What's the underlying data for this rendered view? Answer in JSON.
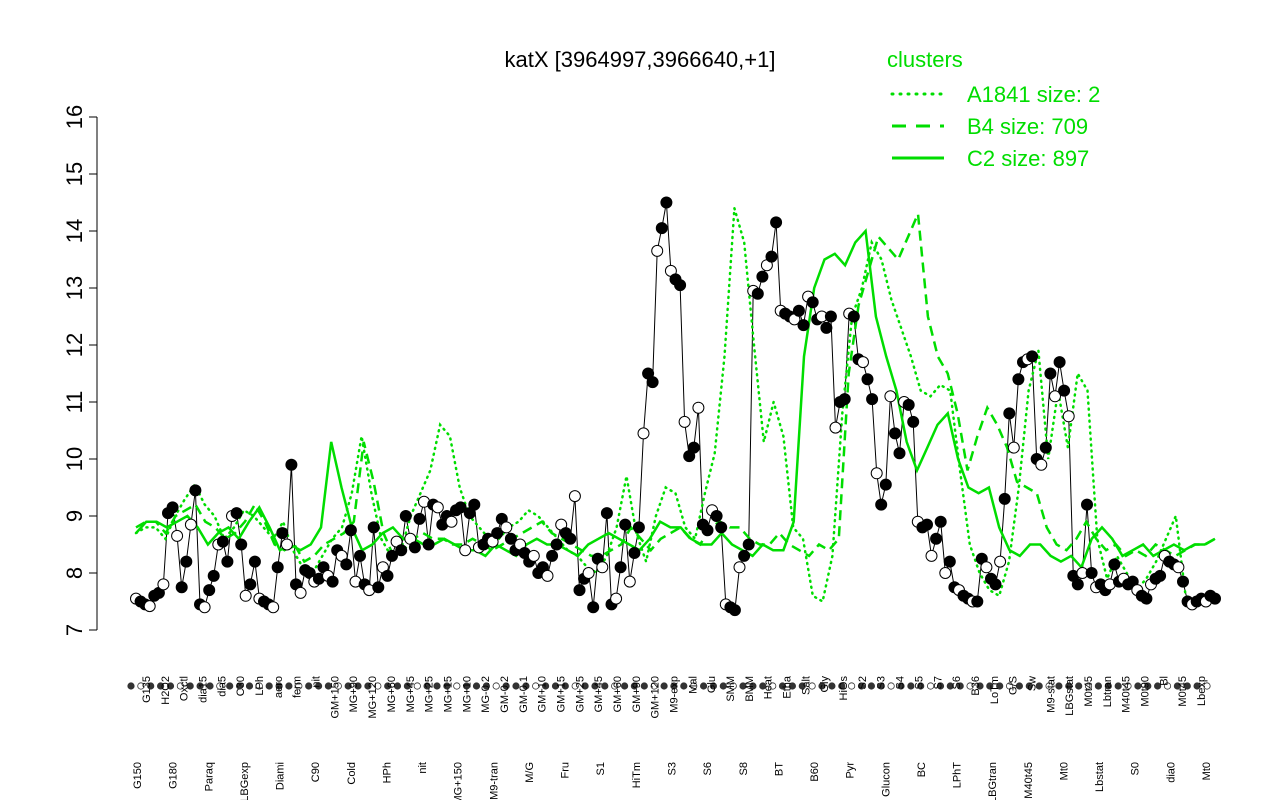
{
  "chart_data": {
    "type": "line",
    "title": "katX [3964997,3966640,+1]",
    "ylim": [
      7,
      16
    ],
    "yticks": [
      7,
      8,
      9,
      10,
      11,
      12,
      13,
      14,
      15,
      16
    ],
    "xlabel": "",
    "ylabel": "",
    "legend": {
      "title": "clusters",
      "placement": "top-right",
      "entries": [
        {
          "label": "A1841 size: 2",
          "style": "dotted",
          "color": "#00dd00"
        },
        {
          "label": "B4 size: 709",
          "style": "dashed",
          "color": "#00dd00"
        },
        {
          "label": "C2 size: 897",
          "style": "solid",
          "color": "#00dd00"
        }
      ]
    },
    "x_labels_row1": [
      "G135",
      "H2O2",
      "Oxctl",
      "dia15",
      "dia5",
      "C30",
      "LPh",
      "aero",
      "ferm",
      "nit",
      "GM+150",
      "MG+90",
      "MG+120",
      "MG+60",
      "MG+45",
      "MG+25",
      "MG+15",
      "MG+10",
      "MG-0.2",
      "GM-0.2",
      "GM-0.1",
      "GM+10",
      "GM+15",
      "GM+25",
      "GM+45",
      "GM+60",
      "GM+90",
      "GM+120",
      "M9-exp",
      "Mal",
      "Glu",
      "SMM",
      "BMM",
      "Heat",
      "Etha",
      "Salt",
      "Gly",
      "HiOs",
      "S2",
      "S3",
      "S4",
      "S5",
      "S7",
      "S6",
      "B36",
      "LoTm",
      "G/S",
      "Sw",
      "M9-stat",
      "LBGstat",
      "M0t45",
      "Lbtran",
      "M40t45",
      "M0t90",
      "Bl",
      "M0t45",
      "Lbexp"
    ],
    "x_labels_row2": [
      "G150",
      "G180",
      "Paraq",
      "LBGexp",
      "Diami",
      "C90",
      "Cold",
      "HPh",
      "nit",
      "MG+150",
      "M9-tran",
      "M/G",
      "Fru",
      "S1",
      "HiTm",
      "S3",
      "S6",
      "S8",
      "BT",
      "B60",
      "Pyr",
      "Glucon",
      "BC",
      "LPhT",
      "LBGtran",
      "M40t45",
      "Mt0",
      "Lbstat",
      "S0",
      "dia0",
      "Mt0"
    ],
    "series": [
      {
        "style": "solid-black-points",
        "values": [
          7.55,
          7.5,
          7.45,
          7.42,
          7.6,
          7.65,
          7.8,
          9.05,
          9.15,
          8.65,
          7.75,
          8.2,
          8.85,
          9.45,
          7.45,
          7.4,
          7.7,
          7.95,
          8.5,
          8.55,
          8.2,
          9.0,
          9.05,
          8.5,
          7.6,
          7.8,
          8.2,
          7.55,
          7.5,
          7.45,
          7.4,
          8.1,
          8.7,
          8.5,
          9.9,
          7.8,
          7.65,
          8.05,
          8.0,
          7.85,
          7.9,
          8.1,
          7.95,
          7.85,
          8.4,
          8.3,
          8.15,
          8.75,
          7.85,
          8.3,
          7.8,
          7.7,
          8.8,
          7.75,
          8.1,
          7.95,
          8.3,
          8.55,
          8.4,
          9.0,
          8.6,
          8.45,
          8.95,
          9.25,
          8.5,
          9.2,
          9.15,
          8.85,
          9.0,
          8.9,
          9.1,
          9.15,
          8.4,
          9.05,
          9.2,
          8.45,
          8.5,
          8.6,
          8.55,
          8.7,
          8.95,
          8.8,
          8.6,
          8.4,
          8.5,
          8.35,
          8.2,
          8.3,
          8.0,
          8.1,
          7.95,
          8.3,
          8.5,
          8.85,
          8.7,
          8.6,
          9.35,
          7.7,
          7.9,
          8.0,
          7.4,
          8.25,
          8.1,
          9.05,
          7.45,
          7.55,
          8.1,
          8.85,
          7.85,
          8.35,
          8.8,
          10.45,
          11.5,
          11.35,
          13.65,
          14.05,
          14.5,
          13.3,
          13.15,
          13.05,
          10.65,
          10.05,
          10.2,
          10.9,
          8.85,
          8.75,
          9.1,
          9.0,
          8.8,
          7.45,
          7.4,
          7.35,
          8.1,
          8.3,
          8.5,
          12.95,
          12.9,
          13.2,
          13.4,
          13.55,
          14.15,
          12.6,
          12.55,
          12.5,
          12.45,
          12.6,
          12.35,
          12.85,
          12.75,
          12.45,
          12.5,
          12.3,
          12.5,
          10.55,
          11.0,
          11.05,
          12.55,
          12.5,
          11.75,
          11.7,
          11.4,
          11.05,
          9.75,
          9.2,
          9.55,
          11.1,
          10.45,
          10.1,
          11.0,
          10.95,
          10.65,
          8.9,
          8.8,
          8.85,
          8.3,
          8.6,
          8.9,
          8.0,
          8.2,
          7.75,
          7.7,
          7.6,
          7.55,
          7.5,
          7.5,
          8.25,
          8.1,
          7.9,
          7.8,
          8.2,
          9.3,
          10.8,
          10.2,
          11.4,
          11.7,
          11.75,
          11.8,
          10.0,
          9.9,
          10.2,
          11.5,
          11.1,
          11.7,
          11.2,
          10.75,
          7.95,
          7.8,
          8.0,
          9.2,
          8.0,
          7.75,
          7.8,
          7.7,
          7.8,
          8.15,
          7.85,
          7.9,
          7.8,
          7.85,
          7.7,
          7.6,
          7.55,
          7.8,
          7.9,
          7.95,
          8.3,
          8.2,
          8.15,
          8.1,
          7.85,
          7.5,
          7.45,
          7.5,
          7.55,
          7.5,
          7.6,
          7.55
        ]
      },
      {
        "style": "dotted-green",
        "values": [
          8.7,
          8.8,
          8.8,
          8.6,
          9.0,
          9.3,
          9.55,
          9.2,
          9.0,
          8.6,
          8.8,
          9.1,
          9.0,
          8.8,
          8.6,
          8.9,
          8.4,
          8.1,
          8.0,
          8.3,
          8.6,
          8.8,
          9.4,
          10.4,
          9.4,
          8.6,
          8.3,
          8.4,
          9.0,
          9.4,
          9.8,
          10.6,
          10.4,
          9.5,
          9.0,
          8.8,
          8.6,
          8.6,
          8.8,
          8.9,
          9.1,
          9.0,
          8.8,
          8.6,
          8.4,
          8.3,
          8.1,
          8.0,
          8.3,
          8.8,
          9.7,
          8.7,
          8.2,
          9.0,
          9.5,
          9.4,
          8.8,
          8.6,
          9.4,
          10.1,
          11.8,
          14.4,
          13.8,
          12.0,
          10.3,
          11.0,
          10.4,
          8.8,
          8.6,
          7.6,
          7.5,
          8.3,
          10.8,
          12.5,
          13.0,
          13.8,
          13.5,
          12.8,
          12.3,
          11.8,
          11.2,
          11.1,
          11.3,
          11.2,
          9.8,
          8.5,
          8.0,
          7.7,
          7.6,
          8.2,
          9.5,
          11.2,
          11.9,
          10.0,
          11.2,
          10.2,
          11.5,
          11.2,
          8.6,
          7.9,
          8.3,
          8.0,
          7.7,
          7.9,
          8.2,
          8.6,
          9.0,
          7.6,
          7.5,
          7.6,
          7.55
        ]
      },
      {
        "style": "dashed-green",
        "values": [
          8.8,
          8.9,
          8.9,
          8.7,
          9.0,
          9.1,
          9.2,
          8.9,
          8.8,
          8.6,
          8.7,
          8.9,
          9.2,
          8.9,
          8.5,
          8.4,
          8.5,
          8.2,
          8.3,
          8.5,
          8.6,
          8.7,
          8.9,
          10.3,
          9.6,
          8.7,
          8.3,
          8.4,
          8.6,
          8.7,
          8.6,
          8.6,
          8.5,
          8.5,
          8.6,
          8.5,
          8.4,
          8.5,
          8.6,
          8.7,
          8.8,
          8.9,
          8.7,
          8.6,
          8.5,
          8.4,
          8.3,
          8.3,
          8.4,
          8.5,
          8.8,
          8.6,
          8.4,
          8.6,
          8.7,
          8.8,
          8.6,
          8.5,
          8.8,
          8.9,
          8.8,
          8.8,
          8.6,
          8.5,
          8.5,
          8.7,
          8.5,
          8.4,
          8.3,
          8.5,
          8.4,
          8.6,
          11.5,
          12.7,
          13.3,
          13.9,
          13.7,
          13.5,
          13.9,
          14.3,
          12.5,
          11.8,
          11.5,
          10.8,
          9.8,
          10.4,
          10.9,
          10.6,
          10.2,
          9.6,
          9.5,
          9.4,
          8.8,
          8.5,
          8.4,
          8.6,
          8.9,
          8.6,
          8.4,
          8.5,
          8.3,
          8.4,
          8.3,
          8.5,
          8.4,
          8.3,
          8.4,
          8.5,
          8.5,
          8.6
        ]
      },
      {
        "style": "solid-green",
        "values": [
          8.7,
          8.9,
          8.9,
          8.8,
          8.9,
          9.0,
          8.8,
          8.5,
          8.7,
          8.8,
          8.6,
          8.9,
          9.15,
          8.8,
          8.4,
          8.5,
          8.4,
          8.5,
          8.8,
          10.3,
          9.5,
          8.8,
          8.4,
          8.5,
          8.7,
          8.8,
          8.6,
          8.6,
          8.5,
          8.5,
          8.6,
          8.5,
          8.4,
          8.4,
          8.3,
          8.5,
          8.4,
          8.3,
          8.5,
          8.6,
          8.5,
          8.5,
          8.4,
          8.3,
          8.5,
          8.6,
          8.7,
          8.6,
          8.5,
          8.4,
          8.6,
          8.9,
          8.8,
          8.8,
          8.6,
          8.5,
          8.5,
          8.7,
          8.5,
          8.4,
          8.3,
          8.5,
          8.4,
          8.4,
          8.9,
          11.8,
          13.0,
          13.5,
          13.6,
          13.4,
          13.8,
          14.0,
          12.5,
          11.8,
          11.2,
          10.3,
          9.8,
          10.2,
          10.6,
          10.8,
          10.0,
          9.5,
          9.4,
          9.5,
          8.8,
          8.4,
          8.3,
          8.5,
          8.5,
          8.3,
          8.2,
          8.3,
          8.1,
          8.6,
          8.8,
          8.6,
          8.3,
          8.4,
          8.5,
          8.3,
          8.4,
          8.5,
          8.4,
          8.5,
          8.5,
          8.6
        ]
      }
    ]
  }
}
